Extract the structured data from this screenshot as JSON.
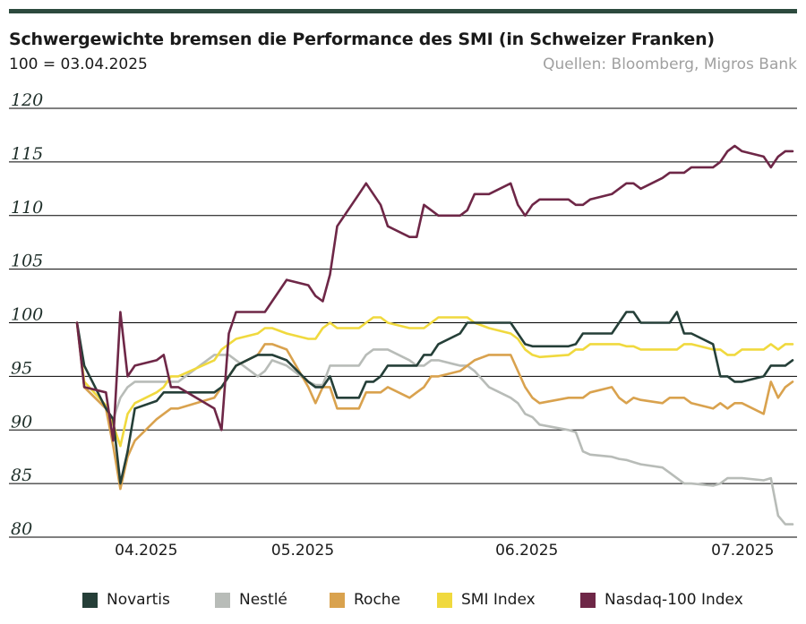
{
  "header": {
    "title": "Schwergewichte bremsen die Performance des SMI (in Schweizer Franken)",
    "subtitle": "100 = 03.04.2025",
    "source": "Quellen: Bloomberg, Migros Bank"
  },
  "colors": {
    "topbar": "#2d4a3e",
    "grid": "#000000",
    "Novartis": "#253f38",
    "Nestlé": "#b8bcb8",
    "Roche": "#d9a24e",
    "SMI Index": "#f0d93e",
    "Nasdaq-100 Index": "#6e2747"
  },
  "legend": [
    "Novartis",
    "Nestlé",
    "Roche",
    "SMI Index",
    "Nasdaq-100 Index"
  ],
  "chart_data": {
    "type": "line",
    "title": "Schwergewichte bremsen die Performance des SMI (in Schweizer Franken)",
    "subtitle": "100 = 03.04.2025",
    "ylim": [
      80,
      120
    ],
    "yticks": [
      "80",
      "85",
      "90",
      "95",
      "100",
      "105",
      "110",
      "115",
      "120"
    ],
    "xticks": [
      "04.2025",
      "05.2025",
      "06.2025",
      "07.2025"
    ],
    "grid": "horizontal",
    "legend_position": "bottom",
    "x": [
      "2025-04-03",
      "2025-04-04",
      "2025-04-07",
      "2025-04-08",
      "2025-04-09",
      "2025-04-10",
      "2025-04-11",
      "2025-04-14",
      "2025-04-15",
      "2025-04-16",
      "2025-04-17",
      "2025-04-22",
      "2025-04-23",
      "2025-04-24",
      "2025-04-25",
      "2025-04-28",
      "2025-04-29",
      "2025-04-30",
      "2025-05-02",
      "2025-05-05",
      "2025-05-06",
      "2025-05-07",
      "2025-05-08",
      "2025-05-09",
      "2025-05-12",
      "2025-05-13",
      "2025-05-14",
      "2025-05-15",
      "2025-05-16",
      "2025-05-19",
      "2025-05-20",
      "2025-05-21",
      "2025-05-22",
      "2025-05-23",
      "2025-05-26",
      "2025-05-27",
      "2025-05-28",
      "2025-05-30",
      "2025-06-02",
      "2025-06-03",
      "2025-06-04",
      "2025-06-05",
      "2025-06-06",
      "2025-06-10",
      "2025-06-11",
      "2025-06-12",
      "2025-06-13",
      "2025-06-16",
      "2025-06-17",
      "2025-06-18",
      "2025-06-19",
      "2025-06-20",
      "2025-06-23",
      "2025-06-24",
      "2025-06-25",
      "2025-06-26",
      "2025-06-27",
      "2025-06-30",
      "2025-07-01",
      "2025-07-02",
      "2025-07-03",
      "2025-07-04",
      "2025-07-07",
      "2025-07-08",
      "2025-07-09",
      "2025-07-10",
      "2025-07-11"
    ],
    "series": [
      {
        "name": "Novartis",
        "values": [
          100,
          96,
          92,
          91,
          85,
          88,
          92,
          92.7,
          93.5,
          93.5,
          93.5,
          93.5,
          94,
          95,
          96,
          97,
          97,
          97,
          96.5,
          94.5,
          94,
          94,
          95,
          93,
          93,
          94.5,
          94.5,
          95,
          96,
          96,
          96,
          97,
          97,
          98,
          99,
          100,
          100,
          100,
          100,
          99,
          98,
          97.8,
          97.8,
          97.8,
          98,
          99,
          99,
          99,
          100,
          101,
          101,
          100,
          100,
          100,
          101,
          99,
          99,
          98,
          95,
          95,
          94.5,
          94.5,
          95,
          96,
          96,
          96,
          96.5
        ]
      },
      {
        "name": "Nestlé",
        "values": [
          100,
          94,
          92,
          91,
          93,
          94,
          94.5,
          94.5,
          94.5,
          94.5,
          94.5,
          97,
          97,
          97,
          96.5,
          95,
          95.5,
          96.5,
          96,
          94.5,
          94.2,
          94.2,
          96,
          96,
          96,
          97,
          97.5,
          97.5,
          97.5,
          96.5,
          96,
          96,
          96.5,
          96.5,
          96,
          96,
          95.5,
          94,
          93,
          92.5,
          91.5,
          91.2,
          90.5,
          90,
          89.8,
          88,
          87.7,
          87.5,
          87.3,
          87.2,
          87,
          86.8,
          86.5,
          86,
          85.5,
          85,
          85,
          84.8,
          85,
          85.5,
          85.5,
          85.5,
          85.3,
          85.5,
          82,
          81.2,
          81.2
        ]
      },
      {
        "name": "Roche",
        "values": [
          100,
          94,
          92,
          88.5,
          84.5,
          87.5,
          89,
          91,
          91.5,
          92,
          92,
          93,
          94,
          95,
          96,
          97,
          98,
          98,
          97.5,
          94,
          92.5,
          94,
          94,
          92,
          92,
          93.5,
          93.5,
          93.5,
          94,
          93,
          93.5,
          94,
          95,
          95,
          95.5,
          96,
          96.5,
          97,
          97,
          95.5,
          94,
          93,
          92.5,
          93,
          93,
          93,
          93.5,
          94,
          93,
          92.5,
          93,
          92.8,
          92.5,
          93,
          93,
          93,
          92.5,
          92,
          92.5,
          92,
          92.5,
          92.5,
          91.5,
          94.5,
          93,
          94,
          94.5
        ]
      },
      {
        "name": "SMI Index",
        "values": [
          100,
          94.5,
          92.3,
          90.5,
          88.5,
          91.5,
          92.5,
          93.5,
          94,
          95,
          95,
          96.5,
          97.5,
          98,
          98.5,
          99,
          99.5,
          99.5,
          99,
          98.5,
          98.5,
          99.5,
          100,
          99.5,
          99.5,
          100,
          100.5,
          100.5,
          100,
          99.5,
          99.5,
          99.5,
          100,
          100.5,
          100.5,
          100.5,
          100,
          99.5,
          99,
          98.5,
          97.5,
          97,
          96.8,
          97,
          97.5,
          97.5,
          98,
          98,
          98,
          97.8,
          97.8,
          97.5,
          97.5,
          97.5,
          97.5,
          98,
          98,
          97.5,
          97.5,
          97,
          97,
          97.5,
          97.5,
          98,
          97.5,
          98,
          98
        ]
      },
      {
        "name": "Nasdaq-100 Index",
        "values": [
          100,
          94,
          93.5,
          89,
          101,
          95,
          96,
          96.5,
          97,
          94,
          94,
          92,
          90,
          99,
          101,
          101,
          101,
          102,
          104,
          103.5,
          102.5,
          102,
          104.5,
          109,
          112,
          113,
          112,
          111,
          109,
          108,
          108,
          111,
          110.5,
          110,
          110,
          110.5,
          112,
          112,
          113,
          111,
          110,
          111,
          111.5,
          111.5,
          111,
          111,
          111.5,
          112,
          112.5,
          113,
          113,
          112.5,
          113.5,
          114,
          114,
          114,
          114.5,
          114.5,
          115,
          116,
          116.5,
          116,
          115.5,
          114.5,
          115.5,
          116,
          116
        ]
      }
    ]
  }
}
